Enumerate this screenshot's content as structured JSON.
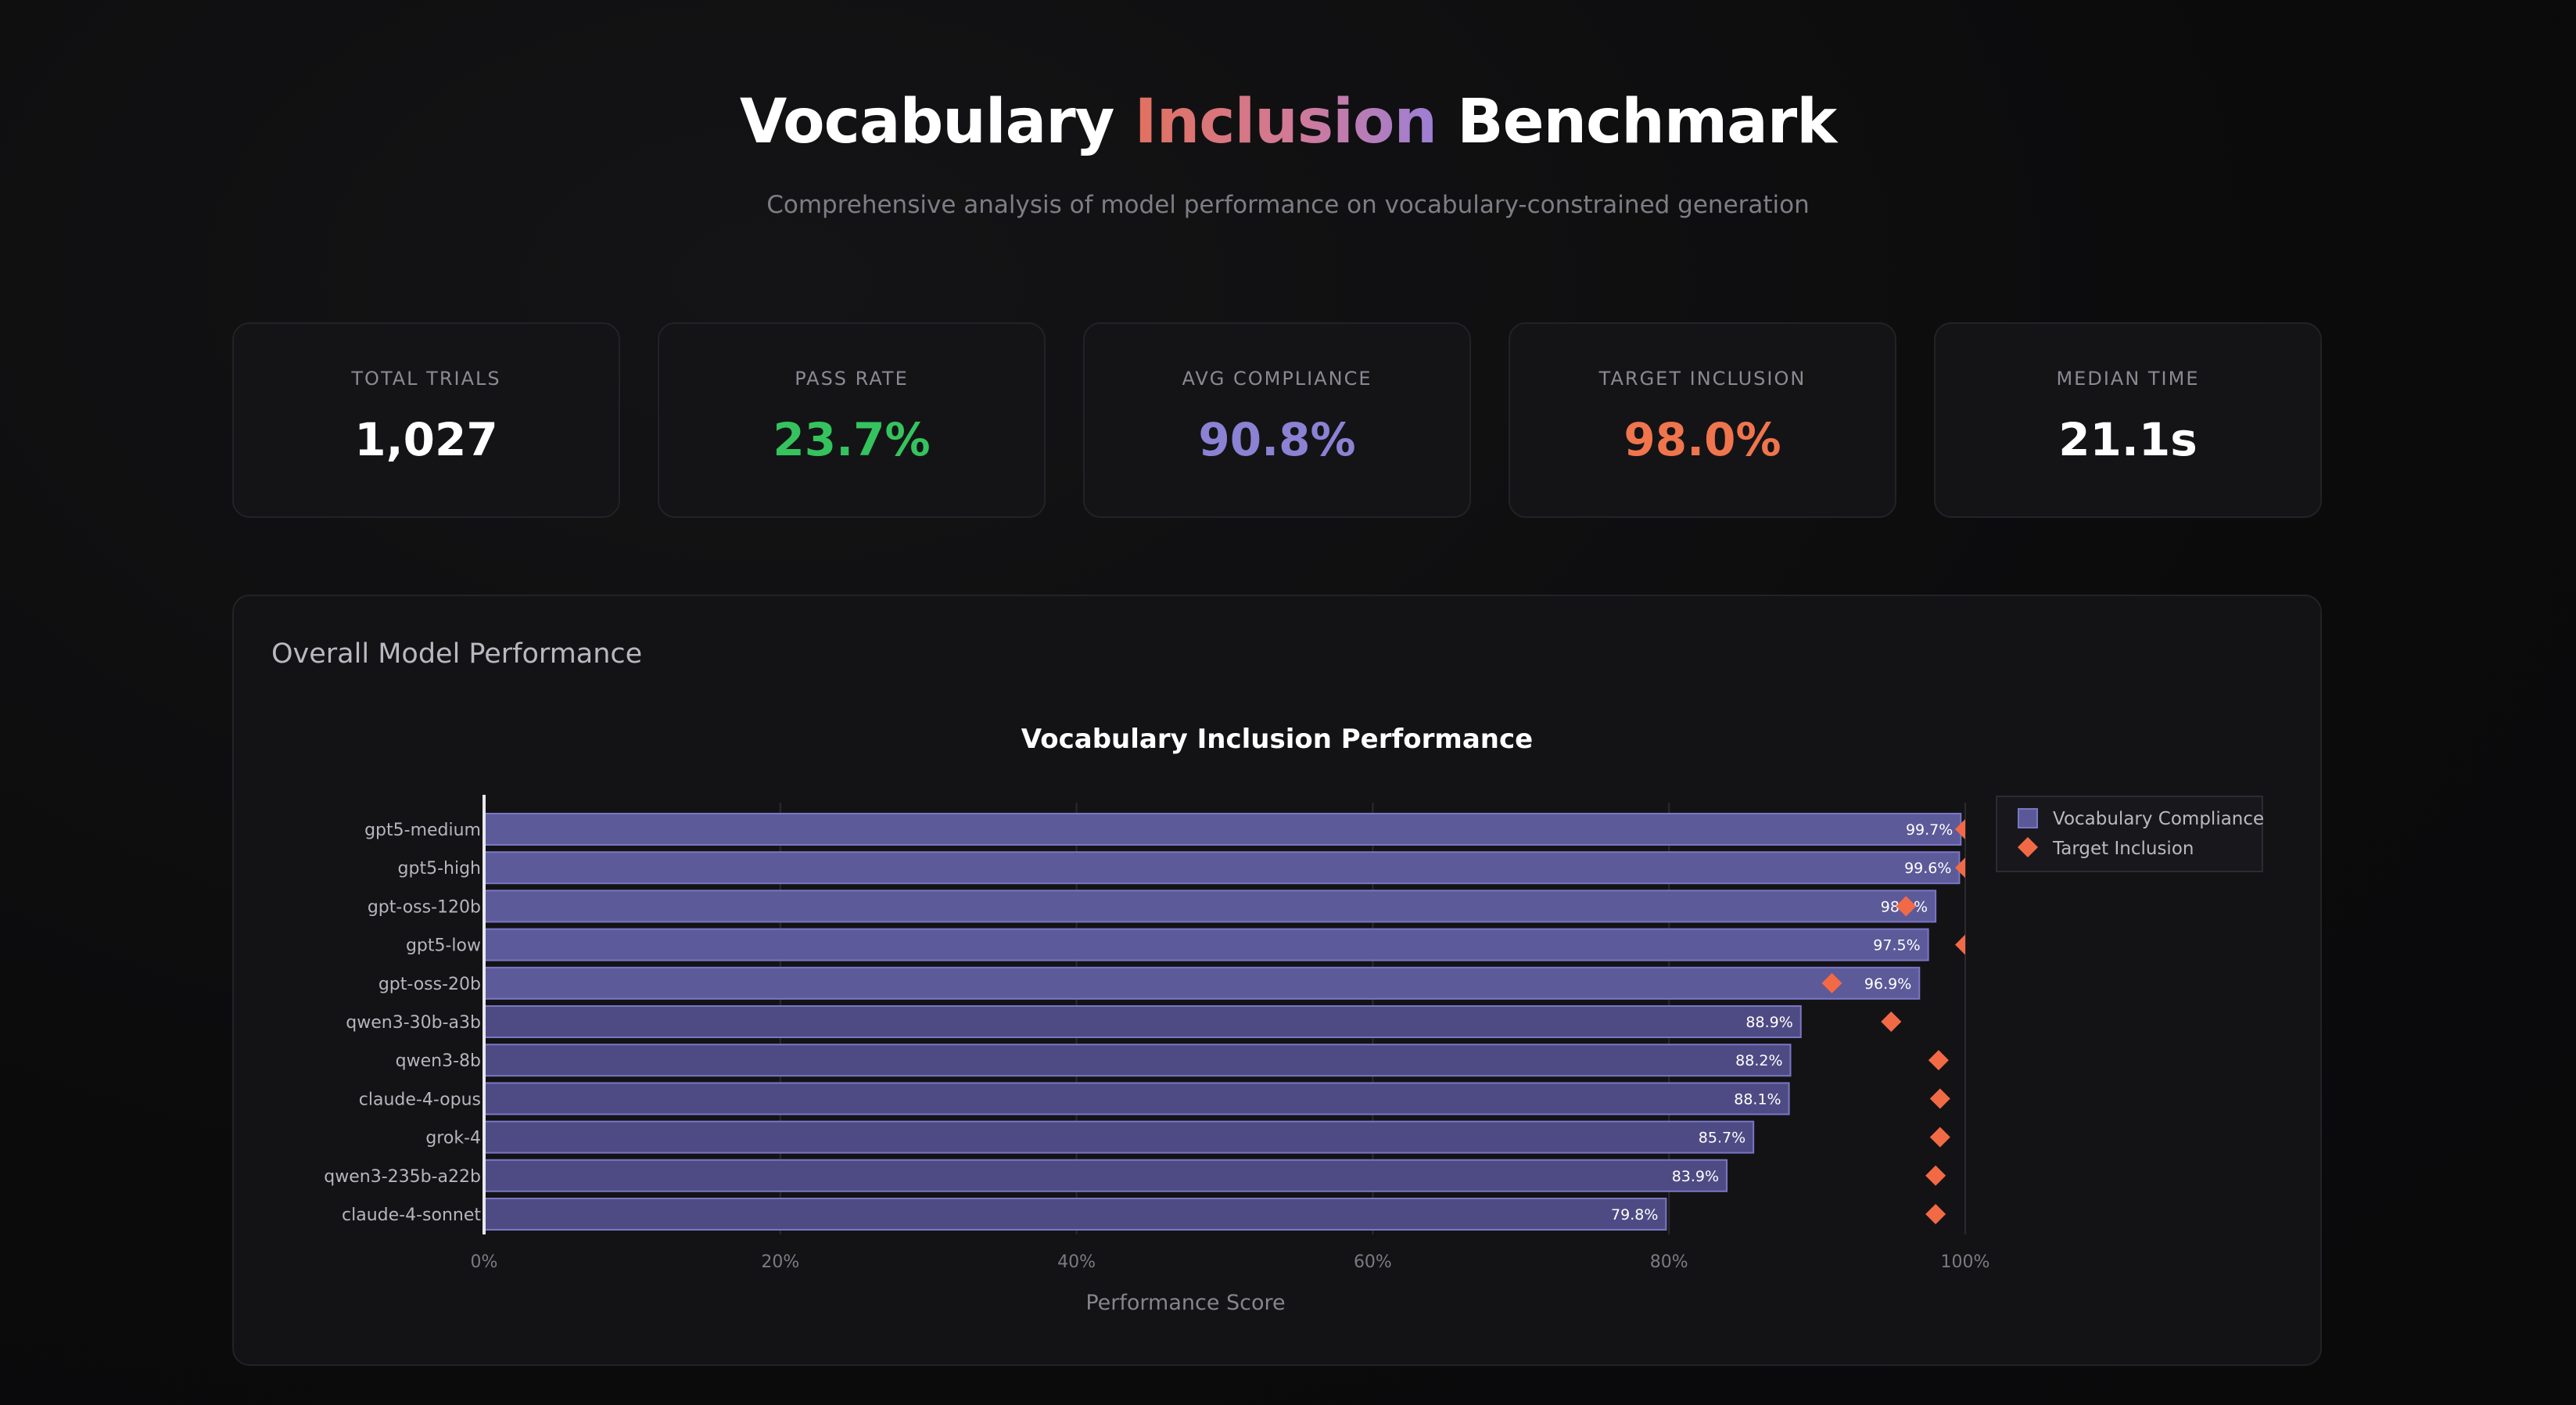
{
  "header": {
    "title_part1": "Vocabulary ",
    "title_accent": "Inclusion",
    "title_part2": " Benchmark",
    "subtitle": "Comprehensive analysis of model performance on vocabulary-constrained generation"
  },
  "stats": [
    {
      "label": "Total Trials",
      "value": "1,027",
      "color": "#ffffff"
    },
    {
      "label": "Pass Rate",
      "value": "23.7%",
      "color": "#35c35e"
    },
    {
      "label": "Avg Compliance",
      "value": "90.8%",
      "color": "#8b82d4"
    },
    {
      "label": "Target Inclusion",
      "value": "98.0%",
      "color": "#f0754c"
    },
    {
      "label": "Median Time",
      "value": "21.1s",
      "color": "#ffffff"
    }
  ],
  "panel": {
    "title": "Overall Model Performance"
  },
  "chart_data": {
    "type": "bar",
    "orientation": "horizontal",
    "title": "Vocabulary Inclusion Performance",
    "xlabel": "Performance Score",
    "ylabel": "",
    "xlim": [
      0,
      100
    ],
    "x_ticks": [
      0,
      20,
      40,
      60,
      80,
      100
    ],
    "x_tick_labels": [
      "0%",
      "20%",
      "40%",
      "60%",
      "80%",
      "100%"
    ],
    "categories": [
      "gpt5-medium",
      "gpt5-high",
      "gpt-oss-120b",
      "gpt5-low",
      "gpt-oss-20b",
      "qwen3-30b-a3b",
      "qwen3-8b",
      "claude-4-opus",
      "grok-4",
      "qwen3-235b-a22b",
      "claude-4-sonnet"
    ],
    "series": [
      {
        "name": "Vocabulary Compliance",
        "kind": "bar",
        "color": "#5a5896",
        "values": [
          99.7,
          99.6,
          98.0,
          97.5,
          96.9,
          88.9,
          88.2,
          88.1,
          85.7,
          83.9,
          79.8
        ],
        "labels": [
          "99.7%",
          "99.6%",
          "98.0%",
          "97.5%",
          "96.9%",
          "88.9%",
          "88.2%",
          "88.1%",
          "85.7%",
          "83.9%",
          "79.8%"
        ]
      },
      {
        "name": "Target Inclusion",
        "kind": "marker",
        "color": "#f26a45",
        "values": [
          100,
          100,
          96,
          100,
          91,
          95,
          98.2,
          98.3,
          98.3,
          98,
          98
        ]
      }
    ],
    "legend_position": "top-right",
    "grid": true
  }
}
